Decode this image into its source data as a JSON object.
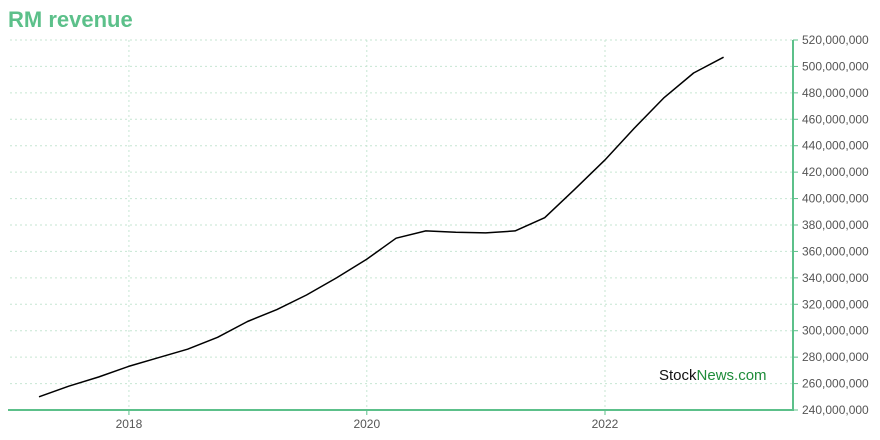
{
  "chart_data": {
    "type": "line",
    "title": "RM revenue",
    "xlabel": "",
    "ylabel": "",
    "x_ticks": [
      "2018",
      "2020",
      "2022"
    ],
    "y_ticks": [
      240000000,
      260000000,
      280000000,
      300000000,
      320000000,
      340000000,
      360000000,
      380000000,
      400000000,
      420000000,
      440000000,
      460000000,
      480000000,
      500000000,
      520000000
    ],
    "y_tick_labels": [
      "240,000,000",
      "260,000,000",
      "280,000,000",
      "300,000,000",
      "320,000,000",
      "340,000,000",
      "360,000,000",
      "380,000,000",
      "400,000,000",
      "420,000,000",
      "440,000,000",
      "460,000,000",
      "480,000,000",
      "500,000,000",
      "520,000,000"
    ],
    "ylim": [
      240000000,
      520000000
    ],
    "xlim": [
      "2017-01-01",
      "2023-08-01"
    ],
    "grid": true,
    "y_axis_side": "right",
    "series": [
      {
        "color": "#000000",
        "points": [
          {
            "x": "2017-03-31",
            "y": 250000000
          },
          {
            "x": "2017-06-30",
            "y": 258000000
          },
          {
            "x": "2017-09-30",
            "y": 265000000
          },
          {
            "x": "2017-12-31",
            "y": 273000000
          },
          {
            "x": "2018-03-31",
            "y": 279500000
          },
          {
            "x": "2018-06-30",
            "y": 286000000
          },
          {
            "x": "2018-09-30",
            "y": 295000000
          },
          {
            "x": "2018-12-31",
            "y": 307000000
          },
          {
            "x": "2019-03-31",
            "y": 316000000
          },
          {
            "x": "2019-06-30",
            "y": 327000000
          },
          {
            "x": "2019-09-30",
            "y": 340000000
          },
          {
            "x": "2019-12-31",
            "y": 354000000
          },
          {
            "x": "2020-03-31",
            "y": 370000000
          },
          {
            "x": "2020-06-30",
            "y": 375500000
          },
          {
            "x": "2020-09-30",
            "y": 374500000
          },
          {
            "x": "2020-12-31",
            "y": 374000000
          },
          {
            "x": "2021-03-31",
            "y": 375500000
          },
          {
            "x": "2021-06-30",
            "y": 385500000
          },
          {
            "x": "2021-09-30",
            "y": 407000000
          },
          {
            "x": "2021-12-31",
            "y": 429000000
          },
          {
            "x": "2022-03-31",
            "y": 453000000
          },
          {
            "x": "2022-06-30",
            "y": 476000000
          },
          {
            "x": "2022-09-30",
            "y": 495000000
          },
          {
            "x": "2022-12-31",
            "y": 507000000
          }
        ]
      }
    ],
    "watermark": {
      "part1": "Stock",
      "part2": "News",
      "part3": ".com"
    },
    "colors": {
      "title": "#5cc08a",
      "axis": "#5cc08a",
      "grid": "#c6e6d2",
      "line": "#000000",
      "watermark_dark": "#111111",
      "watermark_green": "#1e8c3a"
    }
  }
}
